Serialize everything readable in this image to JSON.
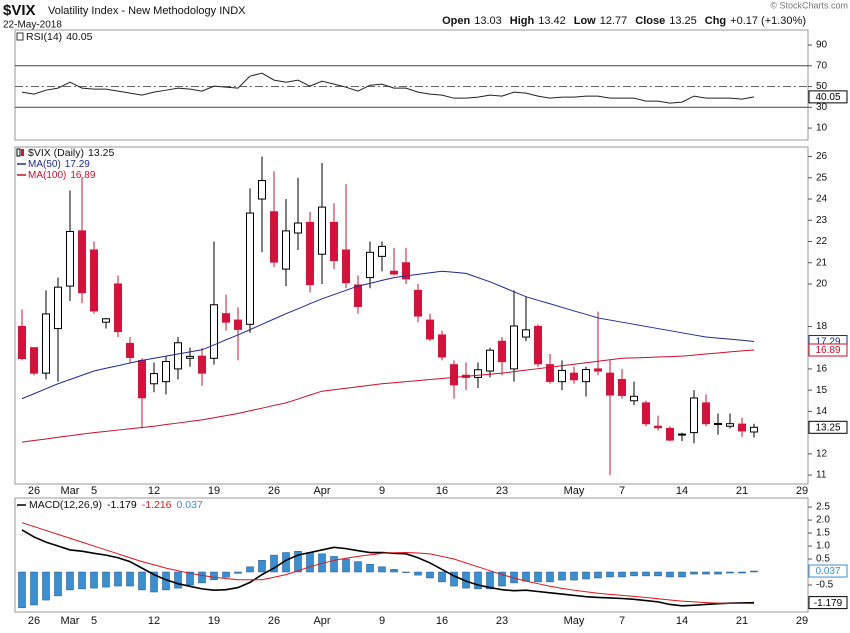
{
  "header": {
    "symbol": "$VIX",
    "name": "Volatility Index - New Methodology INDX",
    "date": "22-May-2018",
    "quote_labels": [
      "Open",
      "High",
      "Low",
      "Close",
      "Chg"
    ],
    "change": "+0.17 (+1.30%)",
    "source": "© StockCharts.com"
  },
  "chart_data": [
    {
      "type": "line",
      "label": "RSI(14)",
      "ylim": [
        -1.5,
        104.5
      ],
      "yticks": [
        10,
        30,
        50,
        70,
        90
      ],
      "levels": [
        30,
        70
      ],
      "midline": 50,
      "series": [
        {
          "name": "RSI(14)",
          "color": "#222222",
          "values": [
            44.6,
            42.7,
            46.5,
            48.5,
            54.2,
            48.5,
            47.5,
            47.5,
            45.6,
            43.7,
            41.7,
            44.6,
            46.5,
            48.5,
            47.5,
            45.6,
            50.4,
            49.4,
            48.5,
            60.0,
            62.9,
            56.2,
            54.2,
            56.2,
            50.4,
            55.2,
            52.3,
            49.4,
            45.6,
            51.3,
            52.3,
            48.5,
            48.5,
            44.6,
            42.7,
            41.7,
            38.8,
            38.8,
            39.8,
            41.7,
            40.8,
            44.6,
            43.7,
            40.8,
            38.8,
            39.8,
            39.8,
            40.8,
            40.8,
            38.8,
            38.8,
            38.8,
            36.0,
            36.0,
            34.0,
            35.0,
            40.8,
            38.8,
            38.8,
            38.8,
            37.9,
            40.05,
            null,
            null,
            null,
            null
          ]
        }
      ]
    },
    {
      "type": "candlestick",
      "title": "$VIX (Daily)",
      "up_color": "#ffffff",
      "down_color": "#d2143c",
      "ylim": [
        10.58,
        26.45
      ],
      "yticks": [
        11,
        12,
        14,
        15,
        16,
        18,
        20,
        21,
        22,
        23,
        24,
        25,
        26
      ],
      "categories": [
        null,
        "26",
        null,
        null,
        "Mar",
        null,
        "5",
        null,
        null,
        null,
        null,
        "12",
        null,
        null,
        null,
        null,
        "19",
        null,
        null,
        null,
        null,
        "26",
        null,
        null,
        null,
        "Apr",
        null,
        null,
        null,
        null,
        "9",
        null,
        null,
        null,
        null,
        "16",
        null,
        null,
        null,
        null,
        "23",
        null,
        null,
        null,
        null,
        null,
        "May",
        null,
        null,
        null,
        "7",
        null,
        null,
        null,
        null,
        "14",
        null,
        null,
        null,
        null,
        "21",
        null,
        null,
        null,
        null,
        "29"
      ],
      "open": [
        18.0,
        17.0,
        15.8,
        17.9,
        19.9,
        22.5,
        21.6,
        18.2,
        20.0,
        17.2,
        16.4,
        15.3,
        15.4,
        16.0,
        16.5,
        16.6,
        16.5,
        18.6,
        18.3,
        18.1,
        24.0,
        23.4,
        20.7,
        22.4,
        22.9,
        21.4,
        22.9,
        21.6,
        19.95,
        20.3,
        21.3,
        20.6,
        21.0,
        19.7,
        18.3,
        17.6,
        16.2,
        15.7,
        15.6,
        15.9,
        17.3,
        16.0,
        17.5,
        18.0,
        16.2,
        15.4,
        15.8,
        15.4,
        16.0,
        15.8,
        15.5,
        14.5,
        14.4,
        13.3,
        13.2,
        12.9,
        13.0,
        14.4,
        13.4,
        13.3,
        13.4,
        13.03,
        null,
        null,
        null,
        null
      ],
      "high": [
        18.8,
        17.0,
        19.7,
        20.3,
        24.4,
        25.0,
        22.0,
        18.4,
        20.4,
        17.5,
        16.5,
        16.3,
        16.6,
        17.5,
        17.0,
        17.0,
        22.0,
        19.5,
        18.9,
        24.5,
        26.0,
        25.3,
        24.0,
        25.0,
        23.4,
        25.7,
        23.8,
        24.7,
        20.4,
        22.0,
        22.0,
        21.7,
        21.7,
        20.0,
        18.6,
        17.8,
        16.4,
        16.3,
        16.3,
        17.0,
        17.5,
        19.7,
        19.4,
        18.1,
        16.7,
        16.4,
        16.1,
        16.1,
        18.7,
        16.4,
        16.0,
        15.4,
        14.5,
        13.8,
        13.3,
        13.0,
        15.0,
        14.8,
        13.9,
        13.9,
        13.7,
        13.42,
        null,
        null,
        null,
        null
      ],
      "low": [
        16.4,
        15.7,
        15.5,
        15.4,
        19.2,
        19.1,
        18.6,
        17.9,
        17.5,
        16.3,
        13.2,
        14.9,
        14.8,
        15.5,
        16.1,
        15.2,
        16.2,
        17.8,
        16.4,
        17.7,
        21.5,
        20.8,
        19.9,
        21.6,
        19.6,
        20.0,
        20.7,
        19.8,
        18.6,
        19.8,
        20.6,
        20.4,
        20.0,
        18.2,
        17.3,
        16.4,
        14.6,
        15.0,
        15.1,
        15.6,
        15.7,
        15.4,
        17.3,
        16.1,
        15.3,
        15.0,
        15.3,
        14.7,
        15.7,
        11.0,
        14.6,
        14.3,
        13.3,
        13.1,
        12.6,
        12.6,
        12.5,
        13.3,
        12.9,
        13.2,
        12.8,
        12.77,
        null,
        null,
        null,
        null
      ],
      "close": [
        16.49,
        15.8,
        18.59,
        19.85,
        22.47,
        19.59,
        18.73,
        18.36,
        17.76,
        16.54,
        14.64,
        15.78,
        16.35,
        17.23,
        16.59,
        15.8,
        19.02,
        18.2,
        17.86,
        23.34,
        24.87,
        21.03,
        22.5,
        22.87,
        19.97,
        23.62,
        21.1,
        20.06,
        18.94,
        21.49,
        21.77,
        20.47,
        20.24,
        18.49,
        17.41,
        16.56,
        15.25,
        15.6,
        15.96,
        16.88,
        16.34,
        18.02,
        17.84,
        16.24,
        15.41,
        15.93,
        15.49,
        15.97,
        15.9,
        14.77,
        14.75,
        14.71,
        13.42,
        13.23,
        12.65,
        12.93,
        14.63,
        13.42,
        13.43,
        13.42,
        13.08,
        13.25,
        null,
        null,
        null,
        null
      ],
      "series": [
        {
          "name": "MA(50)",
          "color": "#1f2a8c",
          "values": [
            14.6,
            14.83,
            15.07,
            15.3,
            15.5,
            15.7,
            15.9,
            16.03,
            16.15,
            16.28,
            16.4,
            16.5,
            16.6,
            16.7,
            16.8,
            16.9,
            17.13,
            17.37,
            17.6,
            17.85,
            18.1,
            18.35,
            18.6,
            18.83,
            19.07,
            19.3,
            19.5,
            19.7,
            19.9,
            20.03,
            20.17,
            20.3,
            20.38,
            20.45,
            20.53,
            20.6,
            20.55,
            20.5,
            20.3,
            20.1,
            19.87,
            19.63,
            19.4,
            19.23,
            19.07,
            18.9,
            18.73,
            18.57,
            18.4,
            18.3,
            18.2,
            18.1,
            18.0,
            17.9,
            17.8,
            17.7,
            17.6,
            17.5,
            17.45,
            17.4,
            17.35,
            17.29,
            null,
            null,
            null,
            null
          ]
        },
        {
          "name": "MA(100)",
          "color": "#c8102e",
          "values": [
            12.55,
            12.63,
            12.7,
            12.78,
            12.85,
            12.93,
            13.0,
            13.06,
            13.12,
            13.18,
            13.24,
            13.3,
            13.38,
            13.45,
            13.53,
            13.6,
            13.7,
            13.8,
            13.9,
            14.03,
            14.15,
            14.28,
            14.4,
            14.58,
            14.77,
            14.95,
            15.02,
            15.09,
            15.16,
            15.23,
            15.3,
            15.35,
            15.4,
            15.45,
            15.5,
            15.55,
            15.6,
            15.65,
            15.7,
            15.75,
            15.8,
            15.87,
            15.94,
            16.01,
            16.08,
            16.15,
            16.22,
            16.29,
            16.36,
            16.43,
            16.5,
            16.52,
            16.54,
            16.56,
            16.58,
            16.6,
            16.65,
            16.7,
            16.75,
            16.8,
            16.85,
            16.89,
            null,
            null,
            null,
            null
          ]
        }
      ]
    },
    {
      "type": "macd",
      "label": "MACD(12,26,9)",
      "ylim": [
        -1.54,
        2.85
      ],
      "yticks": [
        -0.5,
        0.5,
        {
          "value": 1,
          "label": "1.0"
        },
        1.5,
        {
          "value": 2,
          "label": "2.0"
        },
        2.5
      ],
      "series": [
        {
          "color": "#000000",
          "values": [
            1.62,
            1.35,
            1.15,
            1.0,
            0.85,
            0.8,
            0.72,
            0.65,
            0.55,
            0.4,
            0.15,
            -0.1,
            -0.3,
            -0.45,
            -0.55,
            -0.65,
            -0.7,
            -0.68,
            -0.6,
            -0.4,
            -0.1,
            0.15,
            0.45,
            0.65,
            0.75,
            0.85,
            0.95,
            0.9,
            0.82,
            0.75,
            0.75,
            0.72,
            0.7,
            0.55,
            0.35,
            0.1,
            -0.15,
            -0.35,
            -0.5,
            -0.6,
            -0.68,
            -0.72,
            -0.7,
            -0.75,
            -0.8,
            -0.85,
            -0.9,
            -0.95,
            -0.98,
            -1.0,
            -1.02,
            -1.05,
            -1.1,
            -1.15,
            -1.25,
            -1.3,
            -1.28,
            -1.25,
            -1.22,
            -1.2,
            -1.19,
            -1.179,
            null,
            null,
            null,
            null
          ]
        },
        {
          "color": "#e0141e",
          "values": [
            1.9,
            1.75,
            1.6,
            1.45,
            1.3,
            1.15,
            1.0,
            0.85,
            0.7,
            0.55,
            0.4,
            0.28,
            0.15,
            0.05,
            -0.05,
            -0.13,
            -0.2,
            -0.25,
            -0.3,
            -0.3,
            -0.3,
            -0.2,
            -0.1,
            0.05,
            0.2,
            0.33,
            0.45,
            0.53,
            0.6,
            0.66,
            0.72,
            0.74,
            0.75,
            0.73,
            0.7,
            0.6,
            0.5,
            0.35,
            0.2,
            0.05,
            -0.1,
            -0.23,
            -0.35,
            -0.45,
            -0.55,
            -0.63,
            -0.7,
            -0.76,
            -0.82,
            -0.86,
            -0.9,
            -0.94,
            -0.98,
            -1.03,
            -1.08,
            -1.12,
            -1.15,
            -1.18,
            -1.2,
            -1.21,
            -1.21,
            -1.216,
            null,
            null,
            null,
            null
          ]
        },
        {
          "color": "#3b8fd0",
          "style": "histogram",
          "values": [
            -1.38,
            -1.27,
            -1.08,
            -0.92,
            -0.69,
            -0.65,
            -0.62,
            -0.58,
            -0.54,
            -0.54,
            -0.69,
            -0.77,
            -0.69,
            -0.62,
            -0.5,
            -0.42,
            -0.3,
            -0.2,
            -0.05,
            0.2,
            0.45,
            0.65,
            0.75,
            0.8,
            0.75,
            0.7,
            0.6,
            0.5,
            0.4,
            0.3,
            0.2,
            0.1,
            -0.02,
            -0.12,
            -0.23,
            -0.38,
            -0.54,
            -0.62,
            -0.65,
            -0.65,
            -0.54,
            -0.42,
            -0.35,
            -0.38,
            -0.38,
            -0.31,
            -0.31,
            -0.27,
            -0.23,
            -0.19,
            -0.19,
            -0.15,
            -0.15,
            -0.15,
            -0.19,
            -0.19,
            -0.08,
            -0.08,
            -0.08,
            -0.04,
            -0.04,
            0.037,
            null,
            null,
            null,
            null
          ]
        }
      ]
    }
  ]
}
